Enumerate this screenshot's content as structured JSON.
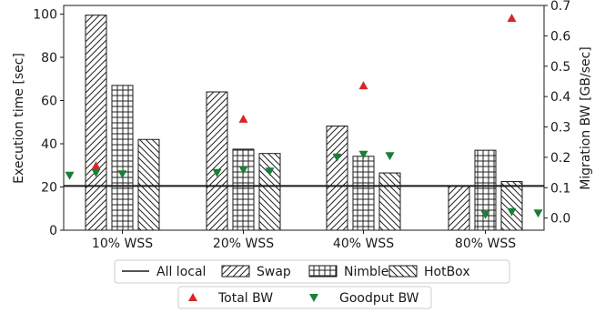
{
  "chart_data": {
    "type": "bar",
    "categories": [
      "10% WSS",
      "20% WSS",
      "40% WSS",
      "80% WSS"
    ],
    "series": [
      {
        "name": "Swap",
        "values": [
          99.5,
          64,
          48.2,
          20.5
        ],
        "hatch": "diag-right"
      },
      {
        "name": "Nimble",
        "values": [
          67,
          37.5,
          34.2,
          37
        ],
        "hatch": "grid"
      },
      {
        "name": "HotBox",
        "values": [
          42,
          35.5,
          26.5,
          22.5
        ],
        "hatch": "diag-left"
      }
    ],
    "reference_line": {
      "name": "All local",
      "value": 20.5
    },
    "secondary_series": [
      {
        "name": "Total BW",
        "marker": "triangle-up",
        "color": "#d62728",
        "values": [
          0.172,
          0.326,
          0.436,
          0.658
        ]
      },
      {
        "name": "Goodput BW",
        "marker": "triangle-down",
        "color": "#1a7f37",
        "values": [
          0.145,
          0.154,
          0.205,
          0.016
        ]
      }
    ],
    "secondary_offsets": [
      [
        -1,
        0,
        1
      ],
      [
        0,
        1,
        2
      ],
      [
        0,
        1,
        2
      ],
      [
        1,
        2,
        3
      ]
    ],
    "ylabel": "Execution time [sec]",
    "ylim": [
      0,
      104
    ],
    "yticks": [
      0,
      20,
      40,
      60,
      80,
      100
    ],
    "y2label": "Migration BW [GB/sec]",
    "y2lim": [
      -0.04,
      0.7
    ],
    "y2ticks": [
      "0.0",
      "0.1",
      "0.2",
      "0.3",
      "0.4",
      "0.5",
      "0.6",
      "0.7"
    ],
    "legend_rows": [
      [
        "All local",
        "Swap",
        "Nimble",
        "HotBox"
      ],
      [
        "Total BW",
        "Goodput BW"
      ]
    ],
    "legend_placement": "bottom"
  }
}
